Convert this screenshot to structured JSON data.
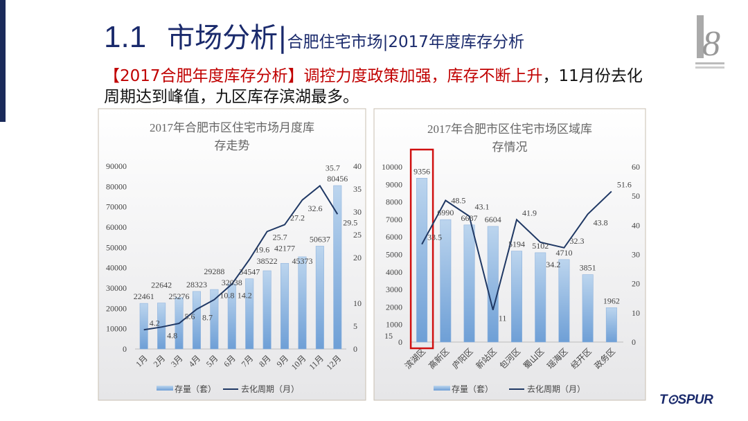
{
  "header": {
    "section_number": "1.1",
    "title": "市场分析|",
    "subtitle": "合肥住宅市场|2017年度库存分析"
  },
  "summary": {
    "highlight": "【2017合肥年度库存分析】调控力度政策加强，库存不断上升",
    "rest": "，11月份去化周期达到峰值，九区库存滨湖最多。"
  },
  "brand": {
    "logo_text": "TOSPUR",
    "anniversary_logo": "18th"
  },
  "colors": {
    "title": "#1a2a6c",
    "highlight": "#c00000",
    "bar": "#9dc3e6",
    "line": "#1f3864",
    "callout": "#d01010"
  },
  "chart_data": [
    {
      "type": "bar+line",
      "title_lines": [
        "2017年合肥市区住宅市场月度库",
        "存走势"
      ],
      "categories": [
        "1月",
        "2月",
        "3月",
        "4月",
        "5月",
        "6月",
        "7月",
        "8月",
        "9月",
        "10月",
        "11月",
        "12月"
      ],
      "series": [
        {
          "name": "存量（套）",
          "type": "bar",
          "axis": "left",
          "values": [
            22461,
            22642,
            25276,
            28323,
            29288,
            32038,
            34547,
            38522,
            42177,
            45373,
            50637,
            80456
          ]
        },
        {
          "name": "去化周期（月）",
          "type": "line",
          "axis": "right",
          "values": [
            4.2,
            4.8,
            5.6,
            8.7,
            10.8,
            14.2,
            19.6,
            25.7,
            27.2,
            32.6,
            35.7,
            29.5
          ]
        }
      ],
      "left_ticks": [
        "0",
        "10000",
        "20000",
        "30000",
        "40000",
        "50000",
        "60000",
        "70000",
        "80000",
        "90000"
      ],
      "ylim": [
        0,
        90000
      ],
      "right_ticks": [
        "0",
        "5",
        "10",
        "20",
        "25",
        "30",
        "35",
        "40"
      ],
      "right_tick_values": [
        0,
        5,
        10,
        20,
        25,
        30,
        35,
        40
      ],
      "y2lim": [
        0,
        40
      ],
      "legend": "bottom",
      "grid": false
    },
    {
      "type": "bar+line",
      "title_lines": [
        "2017年合肥市区住宅市场区域库",
        "存情况"
      ],
      "categories": [
        "滨湖区",
        "高新区",
        "庐阳区",
        "新站区",
        "包河区",
        "蜀山区",
        "瑶海区",
        "经开区",
        "政务区"
      ],
      "series": [
        {
          "name": "存量（套）",
          "type": "bar",
          "axis": "left",
          "values": [
            9356,
            6990,
            6687,
            6604,
            5194,
            5102,
            4710,
            3851,
            1962
          ]
        },
        {
          "name": "去化周期（月）",
          "type": "line",
          "axis": "right",
          "values": [
            33.5,
            48.5,
            43.1,
            11,
            41.9,
            34.2,
            32.3,
            43.8,
            51.6
          ]
        }
      ],
      "left_ticks": [
        "0",
        "1000",
        "2000",
        "3000",
        "4000",
        "5000",
        "6000",
        "7000",
        "8000",
        "9000",
        "10000"
      ],
      "ylim": [
        0,
        10000
      ],
      "right_ticks": [
        "0",
        "10",
        "20",
        "30",
        "40",
        "50",
        "60"
      ],
      "right_tick_values": [
        0,
        10,
        20,
        30,
        40,
        50,
        60
      ],
      "y2lim": [
        0,
        60
      ],
      "stray_label": "15",
      "highlighted_category": "滨湖区",
      "legend": "bottom",
      "grid": false
    }
  ]
}
